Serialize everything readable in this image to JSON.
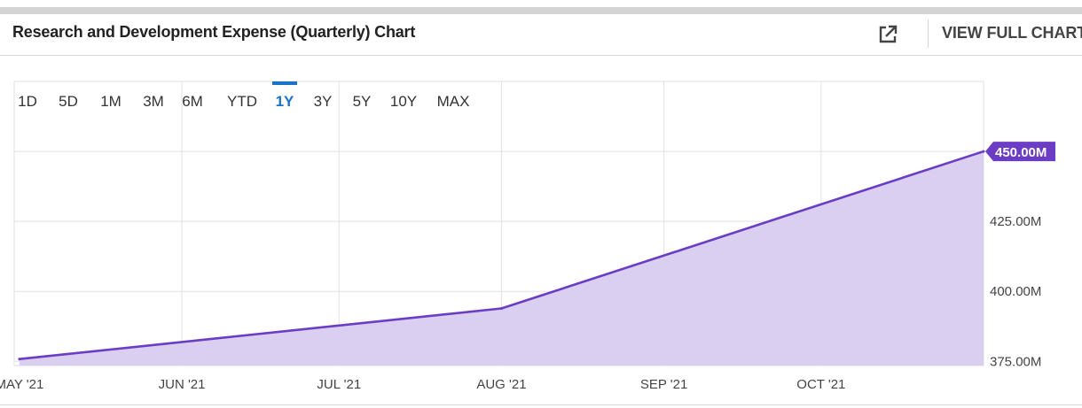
{
  "header": {
    "title": "Research and Development Expense (Quarterly) Chart",
    "view_full_label": "VIEW FULL CHART",
    "external_link_icon": "external-link-icon"
  },
  "range_selector": {
    "options": [
      "1D",
      "5D",
      "1M",
      "3M",
      "6M",
      "YTD",
      "1Y",
      "3Y",
      "5Y",
      "10Y",
      "MAX"
    ],
    "selected": "1Y"
  },
  "colors": {
    "line": "#6a3dc4",
    "fill": "#d8ccf0",
    "grid": "#e2e2e2",
    "active_range": "#1a73c9",
    "badge": "#6a3dc4"
  },
  "chart_data": {
    "type": "area",
    "x": [
      "2021-05-01",
      "2021-08-01",
      "2021-11-01"
    ],
    "series": [
      {
        "values": [
          375.8,
          393.9,
          450.0
        ]
      }
    ],
    "last_value_label": "450.00M",
    "x_tick_labels": [
      "MAY '21",
      "JUN '21",
      "JUL '21",
      "AUG '21",
      "SEP '21",
      "OCT '21"
    ],
    "y_tick_labels": [
      "375.00M",
      "400.00M",
      "425.00M",
      "450.00M"
    ],
    "y_ticks": [
      375,
      400,
      425,
      450
    ],
    "ylim": [
      373.5,
      475
    ],
    "xlim": [
      "2021-04-30",
      "2021-11-01"
    ],
    "y_axis_position": "right",
    "grid": true,
    "xlabel": "",
    "ylabel": ""
  }
}
